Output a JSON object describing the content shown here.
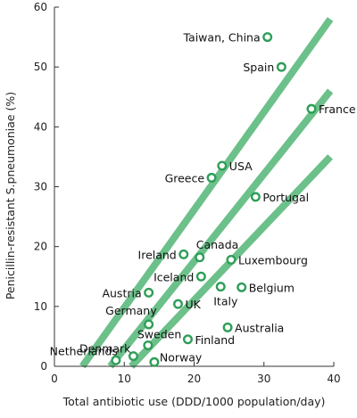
{
  "chart_data": {
    "type": "scatter",
    "title": "",
    "xlabel": "Total antibiotic use (DDD/1000 population/day)",
    "ylabel": "Penicillin-resistant S.pneumoniae (%)",
    "xlim": [
      0,
      40
    ],
    "ylim": [
      0,
      60
    ],
    "x_ticks": [
      0,
      10,
      20,
      30,
      40
    ],
    "y_ticks": [
      0,
      10,
      20,
      30,
      40,
      50,
      60
    ],
    "grid": false,
    "marker_color": "#2e9e57",
    "line_color": "#6cc08a",
    "points": [
      {
        "label": "Taiwan, China",
        "x": 30.5,
        "y": 55
      },
      {
        "label": "Spain",
        "x": 32.5,
        "y": 50
      },
      {
        "label": "France",
        "x": 36.8,
        "y": 43
      },
      {
        "label": "USA",
        "x": 24.0,
        "y": 33.5
      },
      {
        "label": "Greece",
        "x": 22.5,
        "y": 31.5
      },
      {
        "label": "Portugal",
        "x": 28.8,
        "y": 28.3
      },
      {
        "label": "Canada",
        "x": 20.8,
        "y": 18.2
      },
      {
        "label": "Ireland",
        "x": 18.5,
        "y": 18.7
      },
      {
        "label": "Luxembourg",
        "x": 25.3,
        "y": 17.8
      },
      {
        "label": "Iceland",
        "x": 21.0,
        "y": 15.0
      },
      {
        "label": "Austria",
        "x": 13.5,
        "y": 12.3
      },
      {
        "label": "Italy",
        "x": 23.8,
        "y": 13.3
      },
      {
        "label": "Belgium",
        "x": 26.8,
        "y": 13.2
      },
      {
        "label": "UK",
        "x": 17.7,
        "y": 10.4
      },
      {
        "label": "Germany",
        "x": 13.5,
        "y": 7.0
      },
      {
        "label": "Australia",
        "x": 24.8,
        "y": 6.5
      },
      {
        "label": "Sweden",
        "x": 13.4,
        "y": 3.5
      },
      {
        "label": "Finland",
        "x": 19.1,
        "y": 4.5
      },
      {
        "label": "Denmark",
        "x": 11.3,
        "y": 1.7
      },
      {
        "label": "Netherlands",
        "x": 8.8,
        "y": 1.0
      },
      {
        "label": "Norway",
        "x": 14.3,
        "y": 0.7
      }
    ],
    "trend_lines": [
      {
        "x1": 4.0,
        "y1": 0,
        "x2": 39.5,
        "y2": 58
      },
      {
        "x1": 8.0,
        "y1": 0,
        "x2": 39.5,
        "y2": 46
      },
      {
        "x1": 11.0,
        "y1": 0,
        "x2": 39.5,
        "y2": 35
      }
    ]
  }
}
